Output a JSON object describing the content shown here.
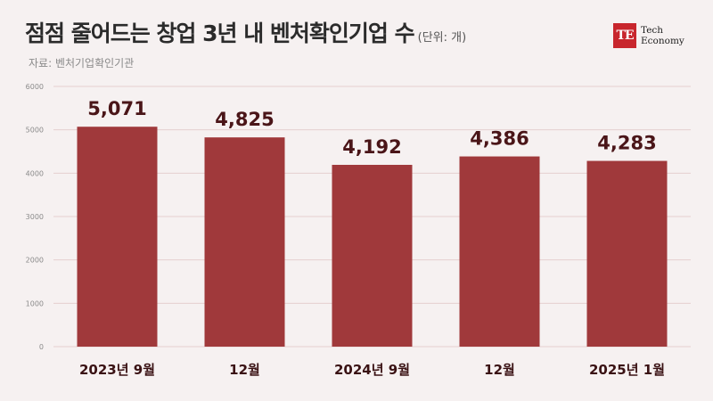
{
  "header": {
    "title": "점점 줄어드는 창업 3년 내 벤처확인기업 수",
    "unit": "(단위: 개)",
    "source": "자료: 벤처기업확인기관"
  },
  "logo": {
    "mark": "TE",
    "line1": "Tech",
    "line2": "Economy"
  },
  "colors": {
    "bar": "#a0393b",
    "value_label": "#4a1518",
    "category_label": "#3a1214",
    "grid": "#e5cfcf",
    "tick": "#8a8a8a"
  },
  "chart_data": {
    "type": "bar",
    "categories": [
      "2023년 9월",
      "12월",
      "2024년 9월",
      "12월",
      "2025년 1월"
    ],
    "values": [
      5071,
      4825,
      4192,
      4386,
      4283
    ],
    "value_labels": [
      "5,071",
      "4,825",
      "4,192",
      "4,386",
      "4,283"
    ],
    "yticks": [
      0,
      1000,
      2000,
      3000,
      4000,
      5000,
      6000
    ],
    "ylim": [
      0,
      6000
    ],
    "grid": true
  }
}
